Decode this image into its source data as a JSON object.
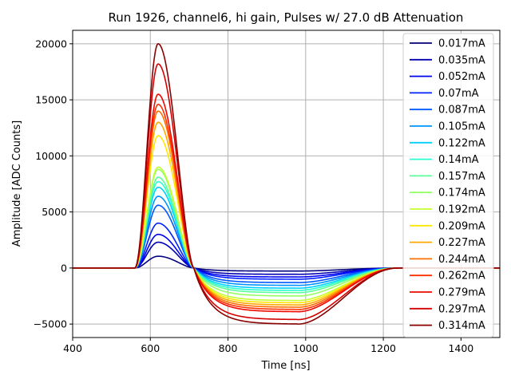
{
  "chart_data": {
    "type": "line",
    "title": "Run 1926, channel6, hi gain, Pulses w/ 27.0 dB Attenuation",
    "xlabel": "Time [ns]",
    "ylabel": "Amplitude [ADC Counts]",
    "xlim": [
      400,
      1500
    ],
    "ylim": [
      -6200,
      21200
    ],
    "xticks": [
      400,
      600,
      800,
      1000,
      1200,
      1400
    ],
    "xtick_labels": [
      "400",
      "600",
      "800",
      "1000",
      "1200",
      "1400"
    ],
    "yticks": [
      -5000,
      0,
      5000,
      10000,
      15000,
      20000
    ],
    "ytick_labels": [
      "−5000",
      "0",
      "5000",
      "10000",
      "15000",
      "20000"
    ],
    "grid": true,
    "legend_position": "right",
    "pulse_shape": {
      "baseline_start": 560,
      "peak_time": 620,
      "zero_cross": 712,
      "undershoot_end": 980,
      "recovery_end": 1240
    },
    "series": [
      {
        "name": "0.017mA",
        "color": "#000080",
        "peak": 1050,
        "undershoot": -270
      },
      {
        "name": "0.035mA",
        "color": "#0000b2",
        "peak": 2300,
        "undershoot": -560
      },
      {
        "name": "0.052mA",
        "color": "#0000f1",
        "peak": 3000,
        "undershoot": -800
      },
      {
        "name": "0.07mA",
        "color": "#0020ff",
        "peak": 4000,
        "undershoot": -1000
      },
      {
        "name": "0.087mA",
        "color": "#0058ff",
        "peak": 5600,
        "undershoot": -1300
      },
      {
        "name": "0.105mA",
        "color": "#0094ff",
        "peak": 6400,
        "undershoot": -1550
      },
      {
        "name": "0.122mA",
        "color": "#00d0ff",
        "peak": 7200,
        "undershoot": -1800
      },
      {
        "name": "0.14mA",
        "color": "#29ffce",
        "peak": 7700,
        "undershoot": -2000
      },
      {
        "name": "0.157mA",
        "color": "#5aff9d",
        "peak": 8100,
        "undershoot": -2200
      },
      {
        "name": "0.174mA",
        "color": "#94ff63",
        "peak": 8800,
        "undershoot": -2500
      },
      {
        "name": "0.192mA",
        "color": "#c4ff33",
        "peak": 9000,
        "undershoot": -2900
      },
      {
        "name": "0.209mA",
        "color": "#ffe600",
        "peak": 11800,
        "undershoot": -3100
      },
      {
        "name": "0.227mA",
        "color": "#ffa700",
        "peak": 13000,
        "undershoot": -3300
      },
      {
        "name": "0.244mA",
        "color": "#ff6f00",
        "peak": 14000,
        "undershoot": -3500
      },
      {
        "name": "0.262mA",
        "color": "#ff3000",
        "peak": 14600,
        "undershoot": -3700
      },
      {
        "name": "0.279mA",
        "color": "#f10800",
        "peak": 15500,
        "undershoot": -3900
      },
      {
        "name": "0.297mA",
        "color": "#d40000",
        "peak": 18200,
        "undershoot": -4600
      },
      {
        "name": "0.314mA",
        "color": "#8a0000",
        "peak": 20000,
        "undershoot": -5000
      }
    ]
  }
}
